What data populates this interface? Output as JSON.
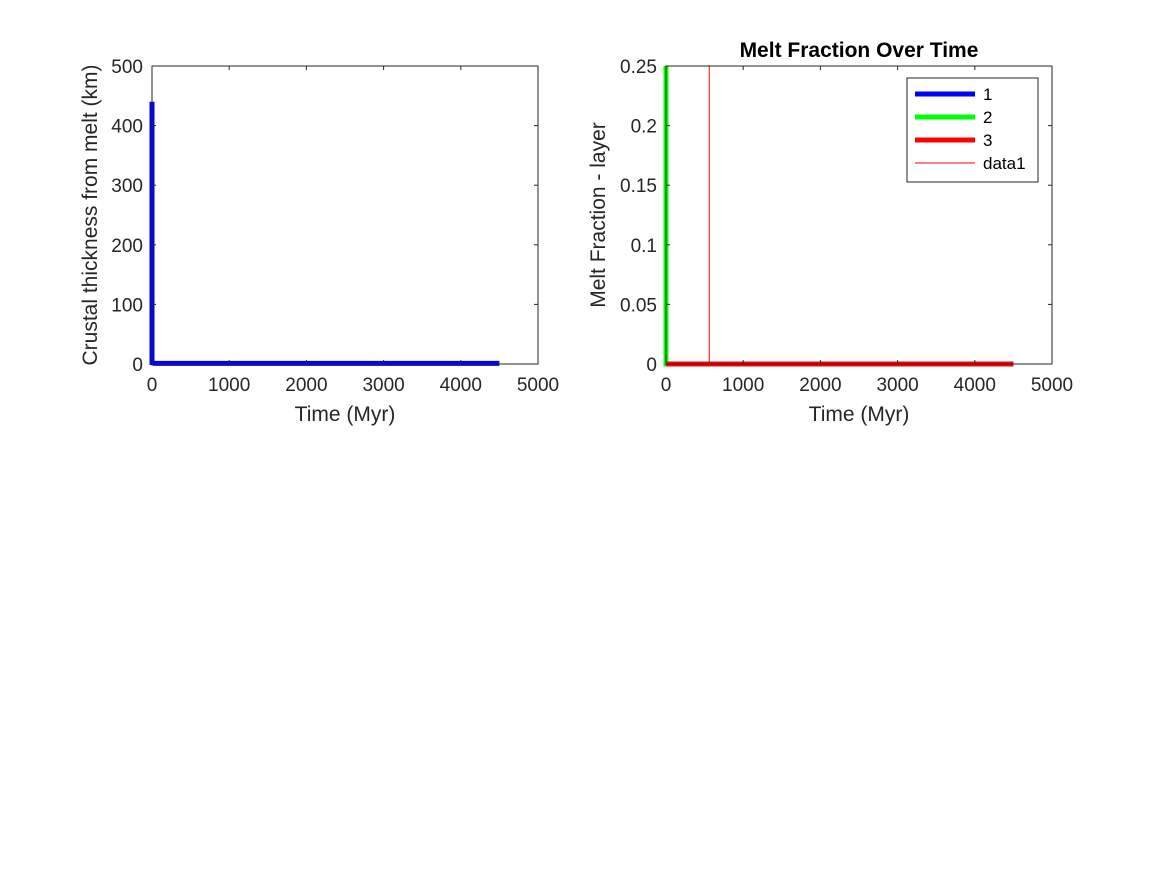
{
  "chart_data": [
    {
      "type": "line",
      "title": "",
      "xlabel": "Time (Myr)",
      "ylabel": "Crustal thickness from melt (km)",
      "xlim": [
        0,
        5000
      ],
      "ylim": [
        0,
        500
      ],
      "xticks": [
        0,
        1000,
        2000,
        3000,
        4000,
        5000
      ],
      "yticks": [
        0,
        100,
        200,
        300,
        400,
        500
      ],
      "x_tick_labels": [
        "0",
        "1000",
        "2000",
        "3000",
        "4000",
        "5000"
      ],
      "y_tick_labels": [
        "0",
        "100",
        "200",
        "300",
        "400",
        "500"
      ],
      "grid": false,
      "series": [
        {
          "color": "#0000ff",
          "x": [
            0,
            0,
            30,
            4500
          ],
          "y": [
            440,
            2,
            1,
            1
          ]
        }
      ]
    },
    {
      "type": "line",
      "title": "Melt Fraction Over Time",
      "xlabel": "Time (Myr)",
      "ylabel": "Melt Fraction - layer",
      "xlim": [
        0,
        5000
      ],
      "ylim": [
        0,
        0.25
      ],
      "xticks": [
        0,
        1000,
        2000,
        3000,
        4000,
        5000
      ],
      "yticks": [
        0,
        0.05,
        0.1,
        0.15,
        0.2,
        0.25
      ],
      "x_tick_labels": [
        "0",
        "1000",
        "2000",
        "3000",
        "4000",
        "5000"
      ],
      "y_tick_labels": [
        "0",
        "0.05",
        "0.1",
        "0.15",
        "0.2",
        "0.25"
      ],
      "grid": false,
      "legend_position": "top-right",
      "series": [
        {
          "name": "1",
          "color": "#0000ff",
          "x": [
            0,
            4500
          ],
          "y": [
            0,
            0
          ]
        },
        {
          "name": "2",
          "color": "#00ff00",
          "x": [
            0,
            0,
            20
          ],
          "y": [
            0.25,
            0,
            0
          ]
        },
        {
          "name": "3",
          "color": "#ff0000",
          "x": [
            0,
            4500
          ],
          "y": [
            0,
            0
          ]
        },
        {
          "name": "data1",
          "color": "#ff0000",
          "thin": true,
          "x": [
            560,
            560
          ],
          "y": [
            0,
            0.25
          ]
        }
      ]
    }
  ]
}
